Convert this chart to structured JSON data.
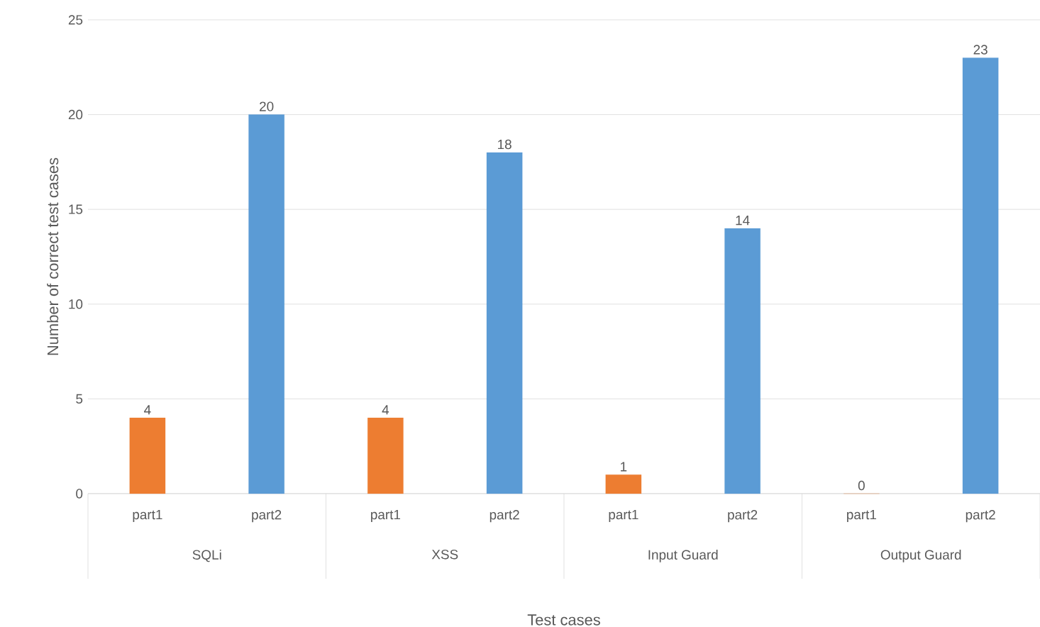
{
  "chart_data": {
    "type": "bar",
    "xlabel": "Test cases",
    "ylabel": "Number of correct test cases",
    "categories": [
      "SQLi",
      "XSS",
      "Input Guard",
      "Output Guard"
    ],
    "series": [
      {
        "name": "part1",
        "color": "#ed7d31",
        "values": [
          4,
          4,
          1,
          0
        ]
      },
      {
        "name": "part2",
        "color": "#5b9bd5",
        "values": [
          20,
          18,
          14,
          23
        ]
      }
    ],
    "ylim": [
      0,
      25
    ],
    "yticks": [
      0,
      5,
      10,
      15,
      20,
      25
    ],
    "grid": "y",
    "data_labels": true
  }
}
